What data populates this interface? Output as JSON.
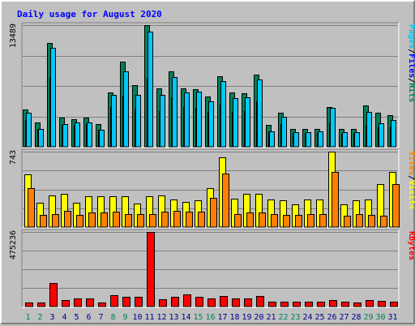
{
  "chart_data": {
    "type": "bar",
    "title": "Daily usage for August 2020",
    "categories": [
      "1",
      "2",
      "3",
      "4",
      "5",
      "6",
      "7",
      "8",
      "9",
      "10",
      "11",
      "12",
      "13",
      "14",
      "15",
      "16",
      "17",
      "18",
      "19",
      "20",
      "21",
      "22",
      "23",
      "24",
      "25",
      "26",
      "27",
      "28",
      "29",
      "30",
      "31"
    ],
    "weekend_days": [
      "1",
      "2",
      "8",
      "9",
      "15",
      "16",
      "22",
      "23",
      "29",
      "30"
    ],
    "panels": [
      {
        "id": "hits_files_pages",
        "ymax": 13489,
        "ymax_label": "13489",
        "legend": [
          "Pages",
          "/",
          "Files",
          "/",
          "Hits"
        ],
        "series": [
          {
            "name": "Hits",
            "color": "#00805c",
            "values": [
              4100,
              2700,
              11500,
              3200,
              3100,
              3200,
              2500,
              6000,
              9400,
              6800,
              13489,
              6500,
              8400,
              6500,
              6400,
              5600,
              7800,
              6000,
              5900,
              8000,
              2400,
              3800,
              2000,
              2000,
              2000,
              4400,
              2000,
              2000,
              4600,
              3800,
              3500
            ]
          },
          {
            "name": "Files",
            "color": "#0000ff",
            "values": [
              3000,
              2000,
              7600,
              2400,
              2300,
              2500,
              1900,
              4400,
              5700,
              4200,
              7600,
              4000,
              5500,
              4400,
              4300,
              3900,
              4700,
              3900,
              4000,
              5000,
              1700,
              2500,
              1500,
              1500,
              1500,
              2700,
              1400,
              1500,
              2400,
              2200,
              2200
            ]
          },
          {
            "name": "Pages",
            "color": "#00c8f8",
            "values": [
              3800,
              2000,
              11000,
              2500,
              2700,
              2700,
              1900,
              5800,
              8400,
              5800,
              12800,
              5800,
              7700,
              6000,
              6100,
              5000,
              7300,
              5400,
              5500,
              7500,
              1700,
              3300,
              1600,
              1600,
              1700,
              4300,
              1600,
              1600,
              3900,
              2600,
              3000
            ]
          }
        ]
      },
      {
        "id": "visits_sites",
        "ymax": 743,
        "ymax_label": "743",
        "legend": [
          "Sites",
          "/",
          "Visits"
        ],
        "series": [
          {
            "name": "Visits",
            "color": "#ffff00",
            "values": [
              520,
              240,
              310,
              330,
              240,
              300,
              300,
              300,
              300,
              230,
              300,
              310,
              270,
              250,
              260,
              380,
              690,
              280,
              330,
              330,
              270,
              260,
              220,
              270,
              270,
              743,
              220,
              260,
              270,
              420,
              540
            ]
          },
          {
            "name": "Sites",
            "color": "#ff8000",
            "values": [
              380,
              120,
              130,
              160,
              120,
              140,
              140,
              150,
              130,
              130,
              130,
              150,
              160,
              150,
              150,
              290,
              530,
              130,
              140,
              140,
              130,
              120,
              120,
              130,
              130,
              540,
              110,
              130,
              120,
              110,
              420
            ]
          }
        ]
      },
      {
        "id": "kbytes",
        "ymax": 475236,
        "ymax_label": "475236",
        "legend": [
          "KBytes"
        ],
        "series": [
          {
            "name": "KBytes",
            "color": "#ff0000",
            "values": [
              28000,
              28000,
              150000,
              40000,
              52000,
              52000,
              28000,
              72000,
              62000,
              62000,
              475236,
              48000,
              62000,
              78000,
              62000,
              52000,
              66000,
              52000,
              52000,
              66000,
              33000,
              33000,
              33000,
              33000,
              33000,
              42000,
              33000,
              25000,
              39000,
              38000,
              33000
            ]
          }
        ]
      }
    ],
    "colors": {
      "background": "#c0c0c0",
      "title": "#0000ff",
      "weekday_label": "#00008b",
      "weekend_label": "#00805c",
      "bar_outline": "#000000"
    }
  }
}
